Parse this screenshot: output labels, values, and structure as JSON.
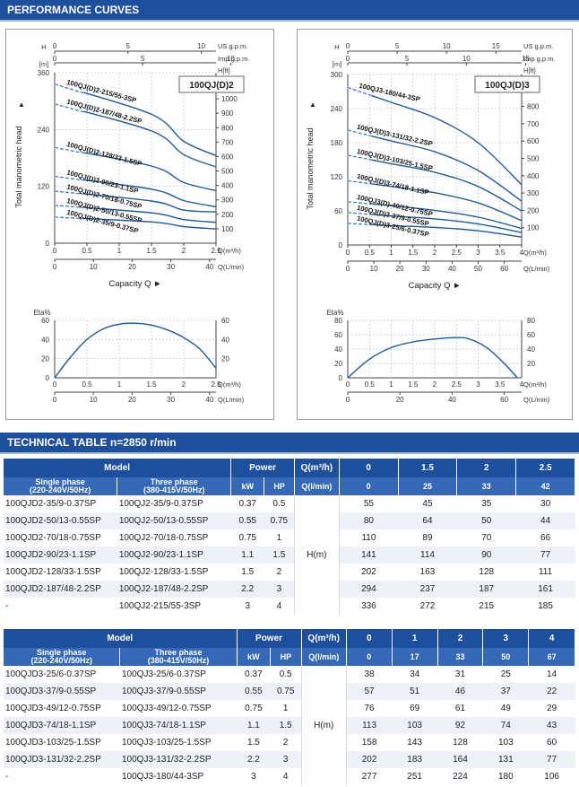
{
  "headers": {
    "performance": "PERFORMANCE CURVES",
    "technical": "TECHNICAL TABLE n=2850 r/min"
  },
  "colors": {
    "band": "#1e4f9c",
    "curve": "#1f5a96",
    "dash": "#3d7cc9"
  },
  "chart_data": [
    {
      "type": "line",
      "title": "100QJ(D)2",
      "ylabel": "Total manometric head",
      "y_unit_left": "H [m]",
      "y_unit_right": "H[ft]",
      "xlabel": "Capacity Q",
      "x_unit": "Q(m³/h)",
      "x2_unit": "Q(L/min)",
      "top_axis1_label": "US g.p.m.",
      "top_axis2_label": "Imp g.p.m.",
      "ylim": [
        0,
        360
      ],
      "xlim": [
        0,
        2.5
      ],
      "y_ticks": [
        0,
        120,
        240,
        360
      ],
      "y_ticks_ft": [
        100,
        200,
        300,
        400,
        500,
        600,
        700,
        800,
        900,
        1000,
        1100
      ],
      "x_ticks": [
        0,
        0.5,
        1,
        1.5,
        2,
        2.5
      ],
      "x2_ticks": [
        0,
        10,
        20,
        30,
        40
      ],
      "us_ticks": [
        0,
        5,
        10
      ],
      "imp_ticks": [
        0,
        5,
        10
      ],
      "x": [
        0,
        1.5,
        2,
        2.5
      ],
      "series": [
        {
          "name": "100QJ(D)2-215/55-3SP",
          "values": [
            336,
            272,
            215,
            185
          ]
        },
        {
          "name": "100QJ(D)2-187/48-2.2SP",
          "values": [
            294,
            237,
            187,
            161
          ]
        },
        {
          "name": "100QJ(D)2-128/33-1.5SP",
          "values": [
            202,
            163,
            128,
            111
          ]
        },
        {
          "name": "100QJ(D)2-90/23-1.1SP",
          "values": [
            141,
            114,
            90,
            77
          ]
        },
        {
          "name": "100QJ(D)2-70/18-0.75SP",
          "values": [
            110,
            89,
            70,
            66
          ]
        },
        {
          "name": "100QJ(D)2-50/13-0.55SP",
          "values": [
            80,
            64,
            50,
            44
          ]
        },
        {
          "name": "100QJ(D)2-35/9-0.37SP",
          "values": [
            55,
            45,
            35,
            30
          ]
        }
      ]
    },
    {
      "type": "line",
      "title": "100QJ(D)3",
      "ylabel": "Total manometric head",
      "y_unit_left": "H [m]",
      "y_unit_right": "H[ft]",
      "xlabel": "Capacity Q",
      "x_unit": "Q(m³/h)",
      "x2_unit": "Q(L/min)",
      "top_axis1_label": "US g.p.m.",
      "top_axis2_label": "Imp g.p.m.",
      "ylim": [
        0,
        300
      ],
      "xlim": [
        0,
        4
      ],
      "y_ticks": [
        0,
        60,
        120,
        180,
        240,
        300
      ],
      "y_ticks_ft": [
        100,
        200,
        300,
        400,
        500,
        600,
        700,
        800,
        900
      ],
      "x_ticks": [
        0,
        0.5,
        1,
        1.5,
        2,
        2.5,
        3,
        3.5,
        4
      ],
      "x2_ticks": [
        0,
        10,
        20,
        30,
        40,
        50,
        60
      ],
      "us_ticks": [
        0,
        5,
        10,
        15
      ],
      "imp_ticks": [
        0,
        5,
        10,
        15
      ],
      "x": [
        0,
        1,
        2,
        3,
        4
      ],
      "series": [
        {
          "name": "100QJ3-180/44-3SP",
          "values": [
            277,
            251,
            224,
            180,
            106
          ]
        },
        {
          "name": "100QJ(D)3-131/32-2.2SP",
          "values": [
            202,
            183,
            164,
            131,
            77
          ]
        },
        {
          "name": "100QJ(D)3-103/25-1.5SP",
          "values": [
            158,
            143,
            128,
            103,
            60
          ]
        },
        {
          "name": "100QJ(D)3-74/18-1.1SP",
          "values": [
            113,
            103,
            92,
            74,
            43
          ]
        },
        {
          "name": "100QJ3(D)-49/12-0.75SP",
          "values": [
            76,
            69,
            61,
            49,
            29
          ]
        },
        {
          "name": "100QJ(D)3-37/9-0.55SP",
          "values": [
            57,
            51,
            46,
            37,
            22
          ]
        },
        {
          "name": "100QJ(D)3-25/6-0.37SP",
          "values": [
            38,
            34,
            31,
            25,
            14
          ]
        }
      ]
    },
    {
      "type": "line",
      "ylabel": "Eta%",
      "x_unit": "Q(m³/h)",
      "x2_unit": "Q(L/min)",
      "ylim": [
        0,
        60
      ],
      "y_ticks": [
        0,
        20,
        40,
        60
      ],
      "x_ticks": [
        0,
        0.5,
        1,
        1.5,
        2,
        2.5
      ],
      "x2_ticks": [
        0,
        10,
        20,
        30,
        40
      ],
      "x": [
        0,
        0.25,
        0.5,
        0.75,
        1,
        1.25,
        1.5,
        1.75,
        2,
        2.25,
        2.5
      ],
      "series": [
        {
          "values": [
            0,
            22,
            40,
            51,
            56,
            57,
            55,
            50,
            42,
            30,
            10
          ]
        }
      ]
    },
    {
      "type": "line",
      "ylabel": "Eta%",
      "x_unit": "Q(m³/h)",
      "x2_unit": "Q(L/min)",
      "ylim": [
        0,
        80
      ],
      "y_ticks": [
        0,
        20,
        40,
        60,
        80
      ],
      "x_ticks": [
        0,
        0.5,
        1,
        1.5,
        2,
        2.5,
        3,
        3.5,
        4
      ],
      "x2_ticks": [
        0,
        20,
        40,
        60
      ],
      "x": [
        0,
        0.5,
        1,
        1.5,
        2,
        2.5,
        2.8,
        3.2,
        3.6,
        3.9
      ],
      "series": [
        {
          "values": [
            0,
            26,
            42,
            50,
            54,
            56,
            54,
            42,
            20,
            0
          ]
        }
      ]
    }
  ],
  "table1": {
    "model": "Model",
    "power": "Power",
    "q_m3h": "Q(m³/h)",
    "q_lmin": "Q(l/min)",
    "single": "Single phase",
    "single_v": "(220-240V/50Hz)",
    "three": "Three phase",
    "three_v": "(380-415V/50Hz)",
    "kw": "kW",
    "hp": "HP",
    "h_label": "H(m)",
    "q_values": [
      "0",
      "1.5",
      "2",
      "2.5"
    ],
    "l_values": [
      "0",
      "25",
      "33",
      "42"
    ],
    "rows": [
      {
        "single": "100QJD2-35/9-0.37SP",
        "three": "100QJ2-35/9-0.37SP",
        "kw": "0.37",
        "hp": "0.5",
        "h": [
          "55",
          "45",
          "35",
          "30"
        ]
      },
      {
        "single": "100QJD2-50/13-0.55SP",
        "three": "100QJ2-50/13-0.55SP",
        "kw": "0.55",
        "hp": "0.75",
        "h": [
          "80",
          "64",
          "50",
          "44"
        ]
      },
      {
        "single": "100QJD2-70/18-0.75SP",
        "three": "100QJ2-70/18-0.75SP",
        "kw": "0.75",
        "hp": "1",
        "h": [
          "110",
          "89",
          "70",
          "66"
        ]
      },
      {
        "single": "100QJD2-90/23-1.1SP",
        "three": "100QJ2-90/23-1.1SP",
        "kw": "1.1",
        "hp": "1.5",
        "h": [
          "141",
          "114",
          "90",
          "77"
        ]
      },
      {
        "single": "100QJD2-128/33-1.5SP",
        "three": "100QJ2-128/33-1.5SP",
        "kw": "1.5",
        "hp": "2",
        "h": [
          "202",
          "163",
          "128",
          "111"
        ]
      },
      {
        "single": "100QJD2-187/48-2.2SP",
        "three": "100QJ2-187/48-2.2SP",
        "kw": "2.2",
        "hp": "3",
        "h": [
          "294",
          "237",
          "187",
          "161"
        ]
      },
      {
        "single": "-",
        "three": "100QJ2-215/55-3SP",
        "kw": "3",
        "hp": "4",
        "h": [
          "336",
          "272",
          "215",
          "185"
        ]
      }
    ]
  },
  "table2": {
    "model": "Model",
    "power": "Power",
    "q_m3h": "Q(m³/h)",
    "q_lmin": "Q(l/min)",
    "single": "Single phase",
    "single_v": "(220-240V/50Hz)",
    "three": "Three phase",
    "three_v": "(380-415V/50Hz)",
    "kw": "kW",
    "hp": "HP",
    "h_label": "H(m)",
    "q_values": [
      "0",
      "1",
      "2",
      "3",
      "4"
    ],
    "l_values": [
      "0",
      "17",
      "33",
      "50",
      "67"
    ],
    "rows": [
      {
        "single": "100QJD3-25/6-0.37SP",
        "three": "100QJ3-25/6-0.37SP",
        "kw": "0.37",
        "hp": "0.5",
        "h": [
          "38",
          "34",
          "31",
          "25",
          "14"
        ]
      },
      {
        "single": "100QJD3-37/9-0.55SP",
        "three": "100QJ3-37/9-0.55SP",
        "kw": "0.55",
        "hp": "0.75",
        "h": [
          "57",
          "51",
          "46",
          "37",
          "22"
        ]
      },
      {
        "single": "100QJD3-49/12-0.75SP",
        "three": "100QJ3-49/12-0.75SP",
        "kw": "0.75",
        "hp": "1",
        "h": [
          "76",
          "69",
          "61",
          "49",
          "29"
        ]
      },
      {
        "single": "100QJD3-74/18-1.1SP",
        "three": "100QJ3-74/18-1.1SP",
        "kw": "1.1",
        "hp": "1.5",
        "h": [
          "113",
          "103",
          "92",
          "74",
          "43"
        ]
      },
      {
        "single": "100QJD3-103/25-1.5SP",
        "three": "100QJ3-103/25-1.5SP",
        "kw": "1.5",
        "hp": "2",
        "h": [
          "158",
          "143",
          "128",
          "103",
          "60"
        ]
      },
      {
        "single": "100QJD3-131/32-2.2SP",
        "three": "100QJ3-131/32-2.2SP",
        "kw": "2.2",
        "hp": "3",
        "h": [
          "202",
          "183",
          "164",
          "131",
          "77"
        ]
      },
      {
        "single": "-",
        "three": "100QJ3-180/44-3SP",
        "kw": "3",
        "hp": "4",
        "h": [
          "277",
          "251",
          "224",
          "180",
          "106"
        ]
      }
    ]
  }
}
